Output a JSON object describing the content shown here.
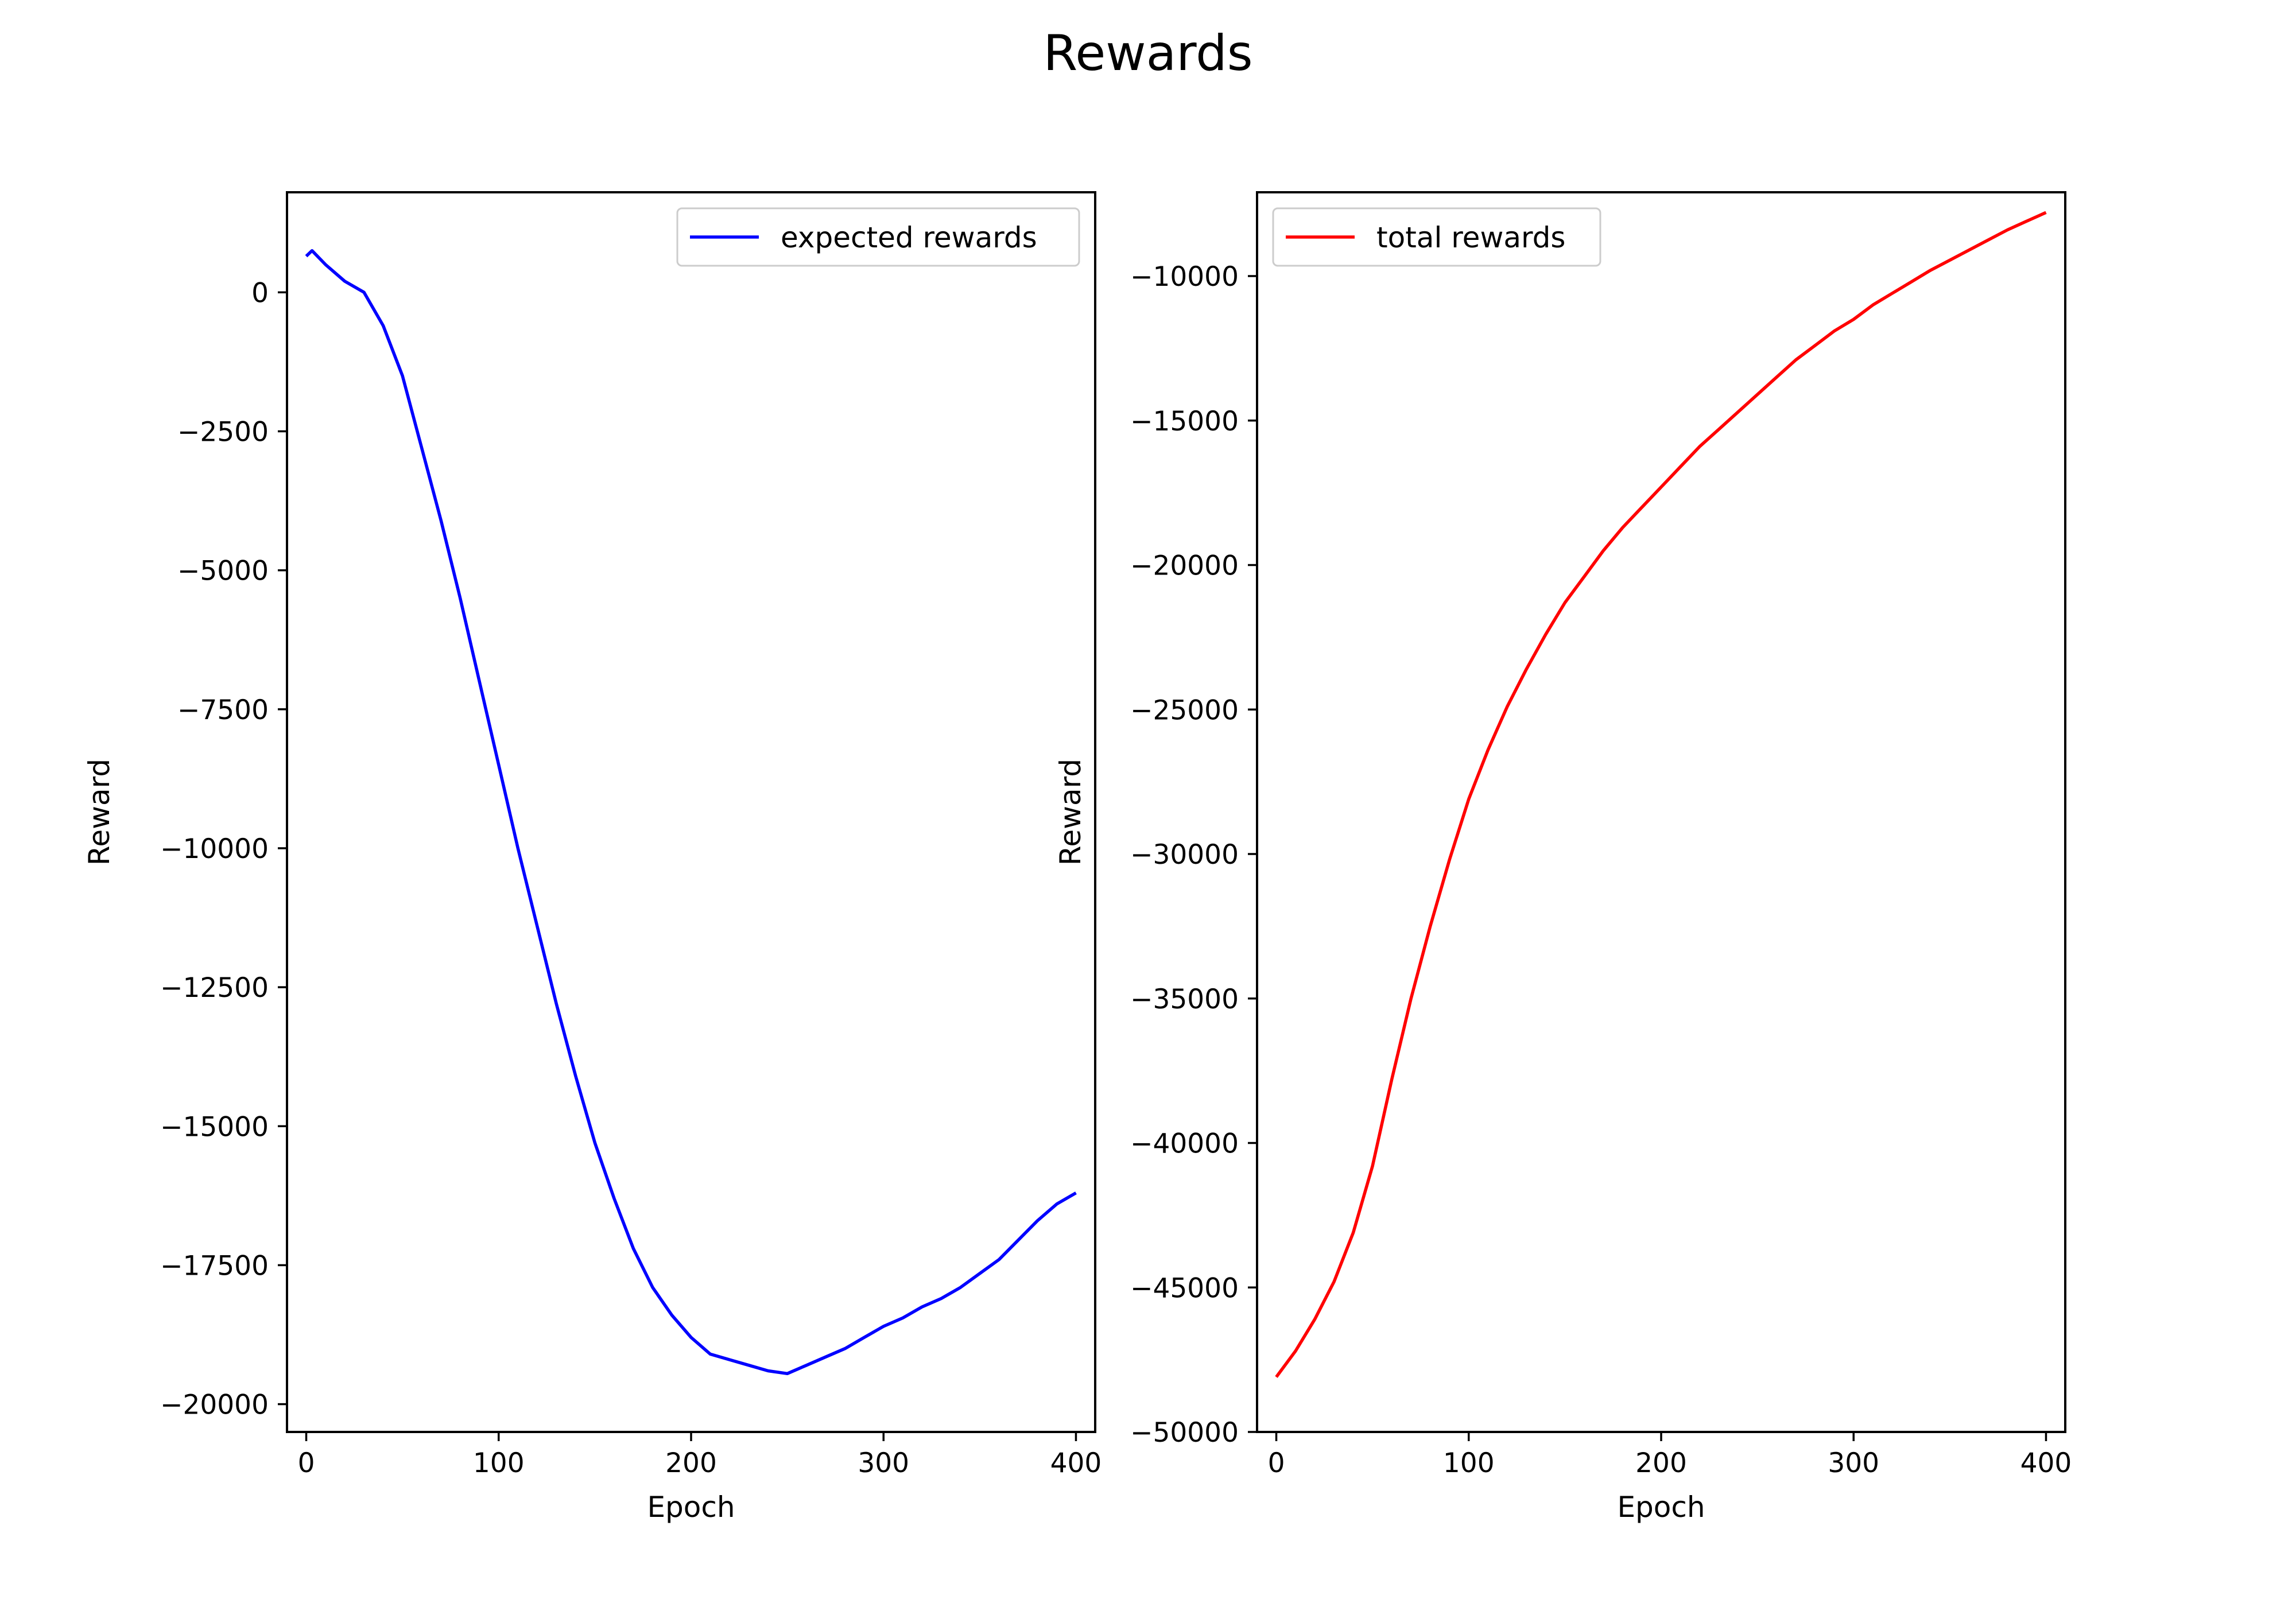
{
  "figure": {
    "title": "Rewards"
  },
  "chart_data": [
    {
      "type": "line",
      "xlabel": "Epoch",
      "ylabel": "Reward",
      "xlim": [
        -10,
        410
      ],
      "ylim": [
        -20500,
        1800
      ],
      "xticks": [
        0,
        100,
        200,
        300,
        400
      ],
      "yticks": [
        0,
        -2500,
        -5000,
        -7500,
        -10000,
        -12500,
        -15000,
        -17500,
        -20000
      ],
      "xtick_labels": [
        "0",
        "100",
        "200",
        "300",
        "400"
      ],
      "ytick_labels": [
        "0",
        "−2500",
        "−5000",
        "−7500",
        "−10000",
        "−12500",
        "−15000",
        "−17500",
        "−20000"
      ],
      "grid": false,
      "legend_position": "upper right",
      "series": [
        {
          "name": "expected rewards",
          "color": "#0000ff",
          "points": [
            [
              0,
              650
            ],
            [
              3,
              750
            ],
            [
              10,
              500
            ],
            [
              20,
              200
            ],
            [
              30,
              0
            ],
            [
              40,
              -600
            ],
            [
              50,
              -1500
            ],
            [
              60,
              -2800
            ],
            [
              70,
              -4100
            ],
            [
              80,
              -5500
            ],
            [
              90,
              -7000
            ],
            [
              100,
              -8500
            ],
            [
              110,
              -10000
            ],
            [
              120,
              -11400
            ],
            [
              130,
              -12800
            ],
            [
              140,
              -14100
            ],
            [
              150,
              -15300
            ],
            [
              160,
              -16300
            ],
            [
              170,
              -17200
            ],
            [
              180,
              -17900
            ],
            [
              190,
              -18400
            ],
            [
              200,
              -18800
            ],
            [
              210,
              -19100
            ],
            [
              220,
              -19200
            ],
            [
              230,
              -19300
            ],
            [
              240,
              -19400
            ],
            [
              250,
              -19450
            ],
            [
              260,
              -19300
            ],
            [
              270,
              -19150
            ],
            [
              280,
              -19000
            ],
            [
              290,
              -18800
            ],
            [
              300,
              -18600
            ],
            [
              310,
              -18450
            ],
            [
              320,
              -18250
            ],
            [
              330,
              -18100
            ],
            [
              340,
              -17900
            ],
            [
              350,
              -17650
            ],
            [
              360,
              -17400
            ],
            [
              370,
              -17050
            ],
            [
              380,
              -16700
            ],
            [
              390,
              -16400
            ],
            [
              400,
              -16200
            ]
          ]
        }
      ]
    },
    {
      "type": "line",
      "xlabel": "Epoch",
      "ylabel": "Reward",
      "xlim": [
        -10,
        410
      ],
      "ylim": [
        -50000,
        -7100
      ],
      "xticks": [
        0,
        100,
        200,
        300,
        400
      ],
      "yticks": [
        -10000,
        -15000,
        -20000,
        -25000,
        -30000,
        -35000,
        -40000,
        -45000,
        -50000
      ],
      "xtick_labels": [
        "0",
        "100",
        "200",
        "300",
        "400"
      ],
      "ytick_labels": [
        "−10000",
        "−15000",
        "−20000",
        "−25000",
        "−30000",
        "−35000",
        "−40000",
        "−45000",
        "−50000"
      ],
      "grid": false,
      "legend_position": "upper left",
      "series": [
        {
          "name": "total rewards",
          "color": "#ff0000",
          "points": [
            [
              0,
              -48100
            ],
            [
              10,
              -47200
            ],
            [
              20,
              -46100
            ],
            [
              30,
              -44800
            ],
            [
              40,
              -43100
            ],
            [
              50,
              -40800
            ],
            [
              60,
              -37800
            ],
            [
              70,
              -35000
            ],
            [
              80,
              -32500
            ],
            [
              90,
              -30200
            ],
            [
              100,
              -28100
            ],
            [
              110,
              -26400
            ],
            [
              120,
              -24900
            ],
            [
              130,
              -23600
            ],
            [
              140,
              -22400
            ],
            [
              150,
              -21300
            ],
            [
              160,
              -20400
            ],
            [
              170,
              -19500
            ],
            [
              180,
              -18700
            ],
            [
              190,
              -18000
            ],
            [
              200,
              -17300
            ],
            [
              210,
              -16600
            ],
            [
              220,
              -15900
            ],
            [
              230,
              -15300
            ],
            [
              240,
              -14700
            ],
            [
              250,
              -14100
            ],
            [
              260,
              -13500
            ],
            [
              270,
              -12900
            ],
            [
              280,
              -12400
            ],
            [
              290,
              -11900
            ],
            [
              300,
              -11500
            ],
            [
              310,
              -11000
            ],
            [
              320,
              -10600
            ],
            [
              330,
              -10200
            ],
            [
              340,
              -9800
            ],
            [
              350,
              -9450
            ],
            [
              360,
              -9100
            ],
            [
              370,
              -8750
            ],
            [
              380,
              -8400
            ],
            [
              390,
              -8100
            ],
            [
              400,
              -7800
            ]
          ]
        }
      ]
    }
  ]
}
